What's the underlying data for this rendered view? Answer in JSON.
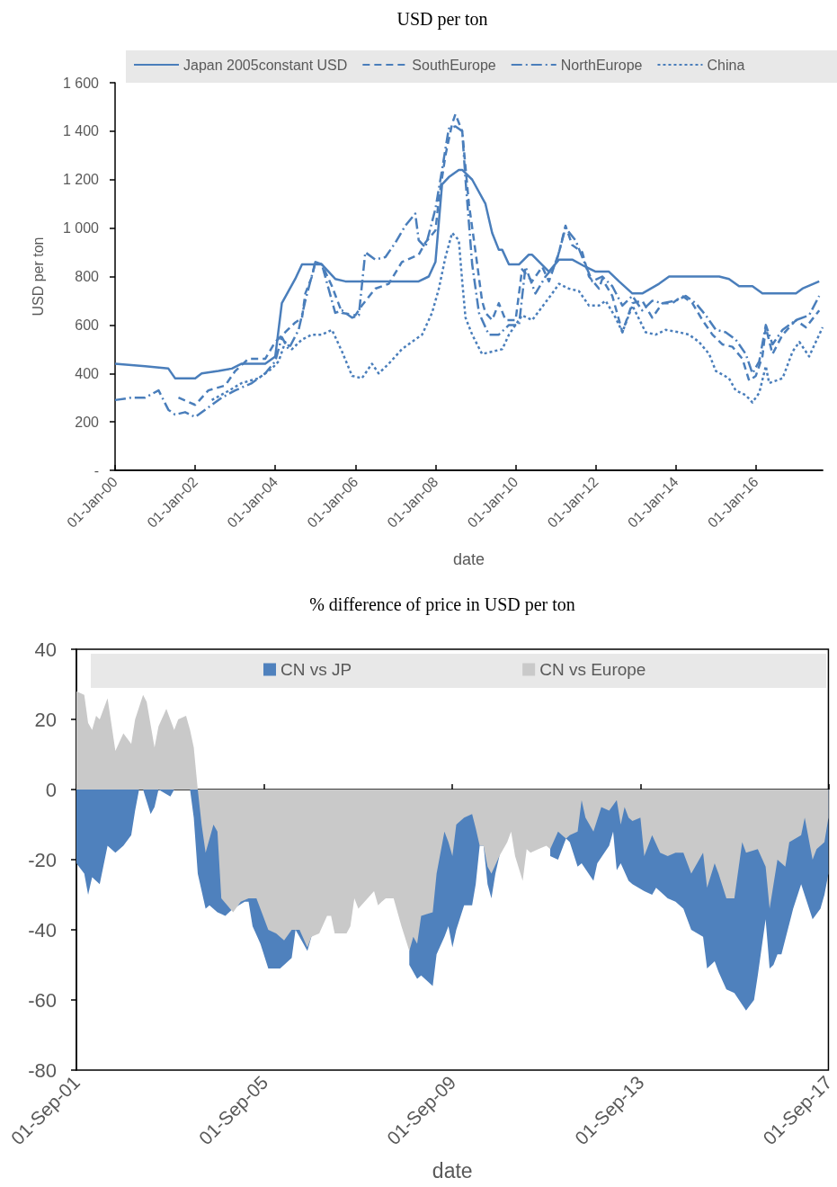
{
  "chart_data": [
    {
      "type": "line",
      "title": "USD per ton",
      "xlabel": "date",
      "ylabel": "USD per ton",
      "xlim": [
        "2000-01",
        "2017-09"
      ],
      "xticks": [
        {
          "value": "2000-01-01",
          "label": "01-Jan-00"
        },
        {
          "value": "2002-01-01",
          "label": "01-Jan-02"
        },
        {
          "value": "2004-01-01",
          "label": "01-Jan-04"
        },
        {
          "value": "2006-01-01",
          "label": "01-Jan-06"
        },
        {
          "value": "2008-01-01",
          "label": "01-Jan-08"
        },
        {
          "value": "2010-01-01",
          "label": "01-Jan-10"
        },
        {
          "value": "2012-01-01",
          "label": "01-Jan-12"
        },
        {
          "value": "2014-01-01",
          "label": "01-Jan-14"
        },
        {
          "value": "2016-01-01",
          "label": "01-Jan-16"
        }
      ],
      "ylim": [
        0,
        1600
      ],
      "yticks": [
        {
          "value": 0,
          "label": "-"
        },
        200,
        400,
        600,
        800,
        {
          "value": 1000,
          "label": "1 000"
        },
        {
          "value": 1200,
          "label": "1 200"
        },
        {
          "value": 1400,
          "label": "1 400"
        },
        {
          "value": 1600,
          "label": "1 600"
        }
      ],
      "legend": "top",
      "marker": "none",
      "series": [
        {
          "name": "Japan 2005constant USD",
          "color": "#4a7ebb",
          "line_style": "solid",
          "x": [
            "2000-01",
            "2000-10",
            "2001-05",
            "2001-07",
            "2002-01",
            "2002-03",
            "2002-08",
            "2002-12",
            "2003-03",
            "2003-10",
            "2004-01",
            "2004-03",
            "2004-05",
            "2004-07",
            "2004-09",
            "2005-03",
            "2005-05",
            "2005-07",
            "2005-10",
            "2007-08",
            "2007-11",
            "2008-01",
            "2008-03",
            "2008-05",
            "2008-08",
            "2008-09",
            "2008-12",
            "2009-04",
            "2009-06",
            "2009-08",
            "2009-09",
            "2009-11",
            "2010-02",
            "2010-05",
            "2010-06",
            "2010-11",
            "2011-02",
            "2011-06",
            "2011-10",
            "2012-01",
            "2012-05",
            "2012-08",
            "2012-12",
            "2013-03",
            "2013-08",
            "2013-11",
            "2015-02",
            "2015-05",
            "2015-08",
            "2015-12",
            "2016-03",
            "2017-01",
            "2017-03",
            "2017-08"
          ],
          "values": [
            440,
            430,
            420,
            380,
            380,
            400,
            410,
            420,
            440,
            440,
            470,
            690,
            740,
            790,
            850,
            850,
            820,
            790,
            780,
            780,
            800,
            860,
            1180,
            1210,
            1240,
            1240,
            1200,
            1100,
            980,
            910,
            910,
            850,
            850,
            890,
            890,
            820,
            870,
            870,
            840,
            820,
            820,
            780,
            730,
            730,
            770,
            800,
            800,
            790,
            760,
            760,
            730,
            730,
            750,
            780
          ]
        },
        {
          "name": "SouthEurope",
          "color": "#4a7ebb",
          "line_style": "dashed",
          "x": [
            "2001-08",
            "2002-01",
            "2002-05",
            "2002-10",
            "2003-01",
            "2003-05",
            "2003-10",
            "2004-01",
            "2004-04",
            "2004-07",
            "2004-09",
            "2004-10",
            "2004-12",
            "2005-01",
            "2005-03",
            "2005-06",
            "2005-09",
            "2006-01",
            "2006-03",
            "2006-07",
            "2006-11",
            "2007-03",
            "2007-08",
            "2007-10",
            "2008-01",
            "2008-02",
            "2008-04",
            "2008-06",
            "2008-07",
            "2008-09",
            "2008-11",
            "2009-01",
            "2009-03",
            "2009-04",
            "2009-06",
            "2009-08",
            "2009-10",
            "2010-01",
            "2010-03",
            "2010-06",
            "2010-09",
            "2010-11",
            "2011-02",
            "2011-04",
            "2011-06",
            "2011-09",
            "2011-11",
            "2012-02",
            "2012-03",
            "2012-06",
            "2012-09",
            "2012-12",
            "2013-03",
            "2013-06",
            "2013-09",
            "2013-12",
            "2014-03",
            "2014-06",
            "2014-09",
            "2014-12",
            "2015-03",
            "2015-06",
            "2015-09",
            "2015-11",
            "2016-01",
            "2016-03",
            "2016-04",
            "2016-06",
            "2016-09",
            "2017-01",
            "2017-04",
            "2017-08"
          ],
          "values": [
            300,
            270,
            330,
            350,
            410,
            460,
            460,
            530,
            570,
            610,
            630,
            730,
            800,
            860,
            850,
            760,
            650,
            640,
            680,
            750,
            770,
            860,
            890,
            940,
            990,
            1120,
            1300,
            1430,
            1470,
            1400,
            1100,
            900,
            700,
            650,
            620,
            690,
            620,
            620,
            830,
            780,
            840,
            780,
            900,
            1010,
            930,
            900,
            800,
            750,
            790,
            720,
            570,
            690,
            700,
            630,
            690,
            690,
            720,
            690,
            620,
            560,
            520,
            510,
            460,
            370,
            390,
            470,
            590,
            480,
            560,
            620,
            590,
            660
          ]
        },
        {
          "name": "NorthEurope",
          "color": "#4a7ebb",
          "line_style": "dashdot",
          "x": [
            "2000-01",
            "2000-06",
            "2000-10",
            "2001-02",
            "2001-05",
            "2001-07",
            "2001-10",
            "2002-01",
            "2002-04",
            "2002-09",
            "2003-01",
            "2003-06",
            "2003-10",
            "2004-01",
            "2004-03",
            "2004-05",
            "2004-08",
            "2004-10",
            "2005-01",
            "2005-03",
            "2005-05",
            "2005-07",
            "2005-09",
            "2005-12",
            "2006-02",
            "2006-04",
            "2006-07",
            "2006-10",
            "2007-01",
            "2007-04",
            "2007-07",
            "2007-08",
            "2007-10",
            "2008-01",
            "2008-03",
            "2008-05",
            "2008-07",
            "2008-09",
            "2008-10",
            "2008-12",
            "2009-02",
            "2009-05",
            "2009-08",
            "2009-11",
            "2010-02",
            "2010-04",
            "2010-07",
            "2010-10",
            "2011-01",
            "2011-04",
            "2011-07",
            "2011-09",
            "2011-12",
            "2012-03",
            "2012-06",
            "2012-09",
            "2012-12",
            "2013-03",
            "2013-06",
            "2013-09",
            "2014-01",
            "2014-04",
            "2014-07",
            "2014-10",
            "2015-01",
            "2015-04",
            "2015-07",
            "2015-10",
            "2015-12",
            "2016-02",
            "2016-04",
            "2016-06",
            "2016-09",
            "2017-01",
            "2017-05",
            "2017-08"
          ],
          "values": [
            290,
            300,
            300,
            330,
            250,
            230,
            240,
            220,
            250,
            300,
            330,
            360,
            400,
            450,
            550,
            500,
            580,
            700,
            860,
            850,
            750,
            650,
            660,
            630,
            640,
            900,
            870,
            880,
            940,
            1010,
            1060,
            950,
            920,
            1080,
            1240,
            1410,
            1420,
            1400,
            1200,
            850,
            650,
            560,
            560,
            600,
            600,
            840,
            730,
            800,
            850,
            1000,
            950,
            880,
            780,
            800,
            760,
            680,
            720,
            660,
            700,
            690,
            700,
            720,
            690,
            640,
            580,
            570,
            540,
            480,
            400,
            450,
            600,
            520,
            580,
            620,
            640,
            720
          ]
        },
        {
          "name": "China",
          "color": "#4a7ebb",
          "line_style": "dotted",
          "x": [
            "2002-06",
            "2002-10",
            "2003-03",
            "2003-08",
            "2003-12",
            "2004-02",
            "2004-04",
            "2004-06",
            "2004-09",
            "2004-12",
            "2005-03",
            "2005-06",
            "2005-09",
            "2005-12",
            "2006-03",
            "2006-06",
            "2006-08",
            "2006-11",
            "2007-03",
            "2007-07",
            "2007-09",
            "2007-12",
            "2008-02",
            "2008-04",
            "2008-06",
            "2008-08",
            "2008-09",
            "2008-10",
            "2008-12",
            "2009-03",
            "2009-09",
            "2009-11",
            "2010-03",
            "2010-06",
            "2010-12",
            "2011-02",
            "2011-05",
            "2011-08",
            "2011-11",
            "2012-02",
            "2012-04",
            "2012-07",
            "2012-09",
            "2012-12",
            "2013-04",
            "2013-07",
            "2013-10",
            "2014-02",
            "2014-05",
            "2014-08",
            "2014-11",
            "2015-01",
            "2015-05",
            "2015-07",
            "2015-10",
            "2015-12",
            "2016-02",
            "2016-04",
            "2016-05",
            "2016-09",
            "2016-12",
            "2017-02",
            "2017-05",
            "2017-07",
            "2017-09"
          ],
          "values": [
            290,
            320,
            360,
            380,
            420,
            450,
            530,
            500,
            540,
            560,
            560,
            580,
            490,
            390,
            380,
            440,
            400,
            440,
            500,
            540,
            560,
            650,
            750,
            880,
            980,
            950,
            780,
            630,
            560,
            480,
            500,
            560,
            640,
            620,
            730,
            770,
            750,
            740,
            680,
            680,
            700,
            630,
            570,
            680,
            570,
            560,
            580,
            570,
            560,
            530,
            480,
            410,
            380,
            330,
            310,
            280,
            320,
            430,
            360,
            380,
            490,
            530,
            470,
            530,
            590
          ]
        }
      ]
    },
    {
      "type": "area",
      "title": "% difference of price in USD per ton",
      "xlabel": "date",
      "xlim": [
        "2001-09",
        "2017-09"
      ],
      "xticks": [
        {
          "value": "2001-09-01",
          "label": "01-Sep-01"
        },
        {
          "value": "2005-09-01",
          "label": "01-Sep-05"
        },
        {
          "value": "2009-09-01",
          "label": "01-Sep-09"
        },
        {
          "value": "2013-09-01",
          "label": "01-Sep-13"
        },
        {
          "value": "2017-09-01",
          "label": "01-Sep-17"
        }
      ],
      "ylim": [
        -80,
        40
      ],
      "yticks": [
        -80,
        -60,
        -40,
        -20,
        0,
        20,
        40
      ],
      "legend": "top",
      "series": [
        {
          "name": "CN vs JP",
          "color": "#4f81bd",
          "x": [
            "2001-09",
            "2001-11",
            "2001-12",
            "2002-01",
            "2002-03",
            "2002-05",
            "2002-07",
            "2002-09",
            "2002-11",
            "2002-12",
            "2003-01",
            "2003-02",
            "2003-04",
            "2003-05",
            "2003-06",
            "2003-09",
            "2003-10",
            "2004-02",
            "2004-03",
            "2004-04",
            "2004-06",
            "2004-07",
            "2004-09",
            "2004-11",
            "2005-01",
            "2005-04",
            "2005-05",
            "2005-06",
            "2005-08",
            "2005-10",
            "2006-01",
            "2006-02",
            "2006-04",
            "2006-05",
            "2006-06",
            "2006-08",
            "2006-09",
            "2006-11",
            "2006-12",
            "2007-01",
            "2008-09",
            "2008-10",
            "2008-12",
            "2009-01",
            "2009-04",
            "2009-05",
            "2009-07",
            "2009-08",
            "2009-09",
            "2009-10",
            "2009-12",
            "2010-02",
            "2010-03",
            "2010-04",
            "2010-05",
            "2010-06",
            "2010-07",
            "2010-08",
            "2010-09",
            "2010-11",
            "2010-12",
            "2011-09",
            "2011-10",
            "2011-12",
            "2012-02",
            "2012-03",
            "2012-05",
            "2012-06",
            "2012-09",
            "2012-10",
            "2013-01",
            "2013-02",
            "2013-03",
            "2013-04",
            "2013-06",
            "2013-07",
            "2013-10",
            "2013-12",
            "2014-01",
            "2014-04",
            "2014-06",
            "2014-08",
            "2014-10",
            "2015-01",
            "2015-02",
            "2015-04",
            "2015-05",
            "2015-07",
            "2015-09",
            "2015-12",
            "2016-02",
            "2016-03",
            "2016-05",
            "2016-06",
            "2016-07",
            "2016-08",
            "2016-09",
            "2016-12",
            "2017-02",
            "2017-05",
            "2017-07",
            "2017-08",
            "2017-09"
          ],
          "values": [
            -21,
            -24,
            -30,
            -25,
            -27,
            -16,
            -18,
            -16,
            -13,
            -6,
            0,
            0,
            -7,
            -5,
            0,
            -2,
            0,
            0,
            -8,
            -24,
            -34,
            -33,
            -35,
            -36,
            -34,
            -32,
            -32,
            -39,
            -44,
            -51,
            -51,
            -50,
            -48,
            -40,
            -42,
            -46,
            -42,
            -40,
            -38,
            null,
            null,
            -50,
            -54,
            -53,
            -56,
            -47,
            -42,
            -39,
            -45,
            -40,
            -33,
            -33,
            -27,
            -16,
            -16,
            -27,
            -31,
            -24,
            -19,
            null,
            null,
            null,
            -19,
            -20,
            -14,
            -15,
            -22,
            -21,
            -26,
            -21,
            -16,
            -12,
            -23,
            -21,
            -26,
            -27,
            -29,
            -30,
            -28,
            -31,
            -32,
            -34,
            -40,
            -42,
            -51,
            -49,
            -52,
            -57,
            -58,
            -63,
            -60,
            -53,
            -37,
            -51,
            -50,
            -47,
            -47,
            -34,
            -27,
            -37,
            -34,
            -30,
            -24
          ]
        },
        {
          "name": "CN vs Europe",
          "color": "#c9c9c9",
          "x": [
            "2001-09",
            "2001-11",
            "2001-12",
            "2002-01",
            "2002-02",
            "2002-03",
            "2002-05",
            "2002-07",
            "2002-09",
            "2002-11",
            "2002-12",
            "2003-02",
            "2003-03",
            "2003-05",
            "2003-06",
            "2003-08",
            "2003-10",
            "2003-11",
            "2004-01",
            "2004-02",
            "2004-03",
            "2004-04",
            "2004-05",
            "2004-06",
            "2004-08",
            "2004-09",
            "2004-10",
            "2005-01",
            "2005-03",
            "2005-05",
            "2005-07",
            "2005-10",
            "2005-12",
            "2006-02",
            "2006-04",
            "2006-06",
            "2006-08",
            "2006-09",
            "2006-11",
            "2007-01",
            "2007-02",
            "2007-03",
            "2007-06",
            "2007-07",
            "2007-08",
            "2007-09",
            "2008-01",
            "2008-02",
            "2008-03",
            "2008-04",
            "2008-06",
            "2008-08",
            "2008-10",
            "2008-11",
            "2008-12",
            "2009-01",
            "2009-04",
            "2009-05",
            "2009-07",
            "2009-08",
            "2009-09",
            "2009-10",
            "2009-12",
            "2010-02",
            "2010-03",
            "2010-04",
            "2010-05",
            "2010-06",
            "2010-07",
            "2010-09",
            "2010-11",
            "2010-12",
            "2011-01",
            "2011-03",
            "2011-04",
            "2011-05",
            "2011-07",
            "2011-09",
            "2011-10",
            "2011-12",
            "2012-01",
            "2012-02",
            "2012-03",
            "2012-05",
            "2012-06",
            "2012-07",
            "2012-09",
            "2012-11",
            "2013-01",
            "2013-03",
            "2013-04",
            "2013-05",
            "2013-06",
            "2013-07",
            "2013-09",
            "2013-10",
            "2013-12",
            "2014-02",
            "2014-04",
            "2014-06",
            "2014-08",
            "2014-10",
            "2015-01",
            "2015-02",
            "2015-04",
            "2015-05",
            "2015-07",
            "2015-09",
            "2015-11",
            "2015-12",
            "2016-03",
            "2016-05",
            "2016-06",
            "2016-08",
            "2016-10",
            "2016-11",
            "2017-02",
            "2017-03",
            "2017-05",
            "2017-06",
            "2017-08",
            "2017-09"
          ],
          "values": [
            28,
            27,
            19,
            17,
            21,
            20,
            26,
            11,
            16,
            13,
            20,
            27,
            25,
            12,
            18,
            23,
            17,
            20,
            21,
            17,
            12,
            0,
            -10,
            -18,
            -10,
            -12,
            -31,
            -35,
            -32,
            -31,
            -31,
            -40,
            -41,
            -43,
            -40,
            -40,
            -45,
            -42,
            -41,
            -36,
            -36,
            -41,
            -41,
            -39,
            -31,
            -34,
            -29,
            -33,
            -32,
            -31,
            -31,
            -39,
            -46,
            -42,
            -44,
            -36,
            -35,
            -24,
            -12,
            -15,
            -19,
            -10,
            -8,
            -7,
            -11,
            -16,
            -16,
            -22,
            -24,
            -19,
            -15,
            -12,
            -19,
            -26,
            -17,
            -18,
            -17,
            -16,
            -17,
            -12,
            -13,
            -14,
            -13,
            -12,
            -3,
            -8,
            -12,
            -5,
            -6,
            -3,
            -10,
            -5,
            -8,
            -9,
            -8,
            -19,
            -13,
            -18,
            -19,
            -18,
            -18,
            -24,
            -18,
            -28,
            -21,
            -24,
            -31,
            -31,
            -15,
            -18,
            -17,
            -22,
            -34,
            -20,
            -22,
            -15,
            -13,
            -8,
            -20,
            -17,
            -15,
            -8
          ]
        }
      ]
    }
  ]
}
